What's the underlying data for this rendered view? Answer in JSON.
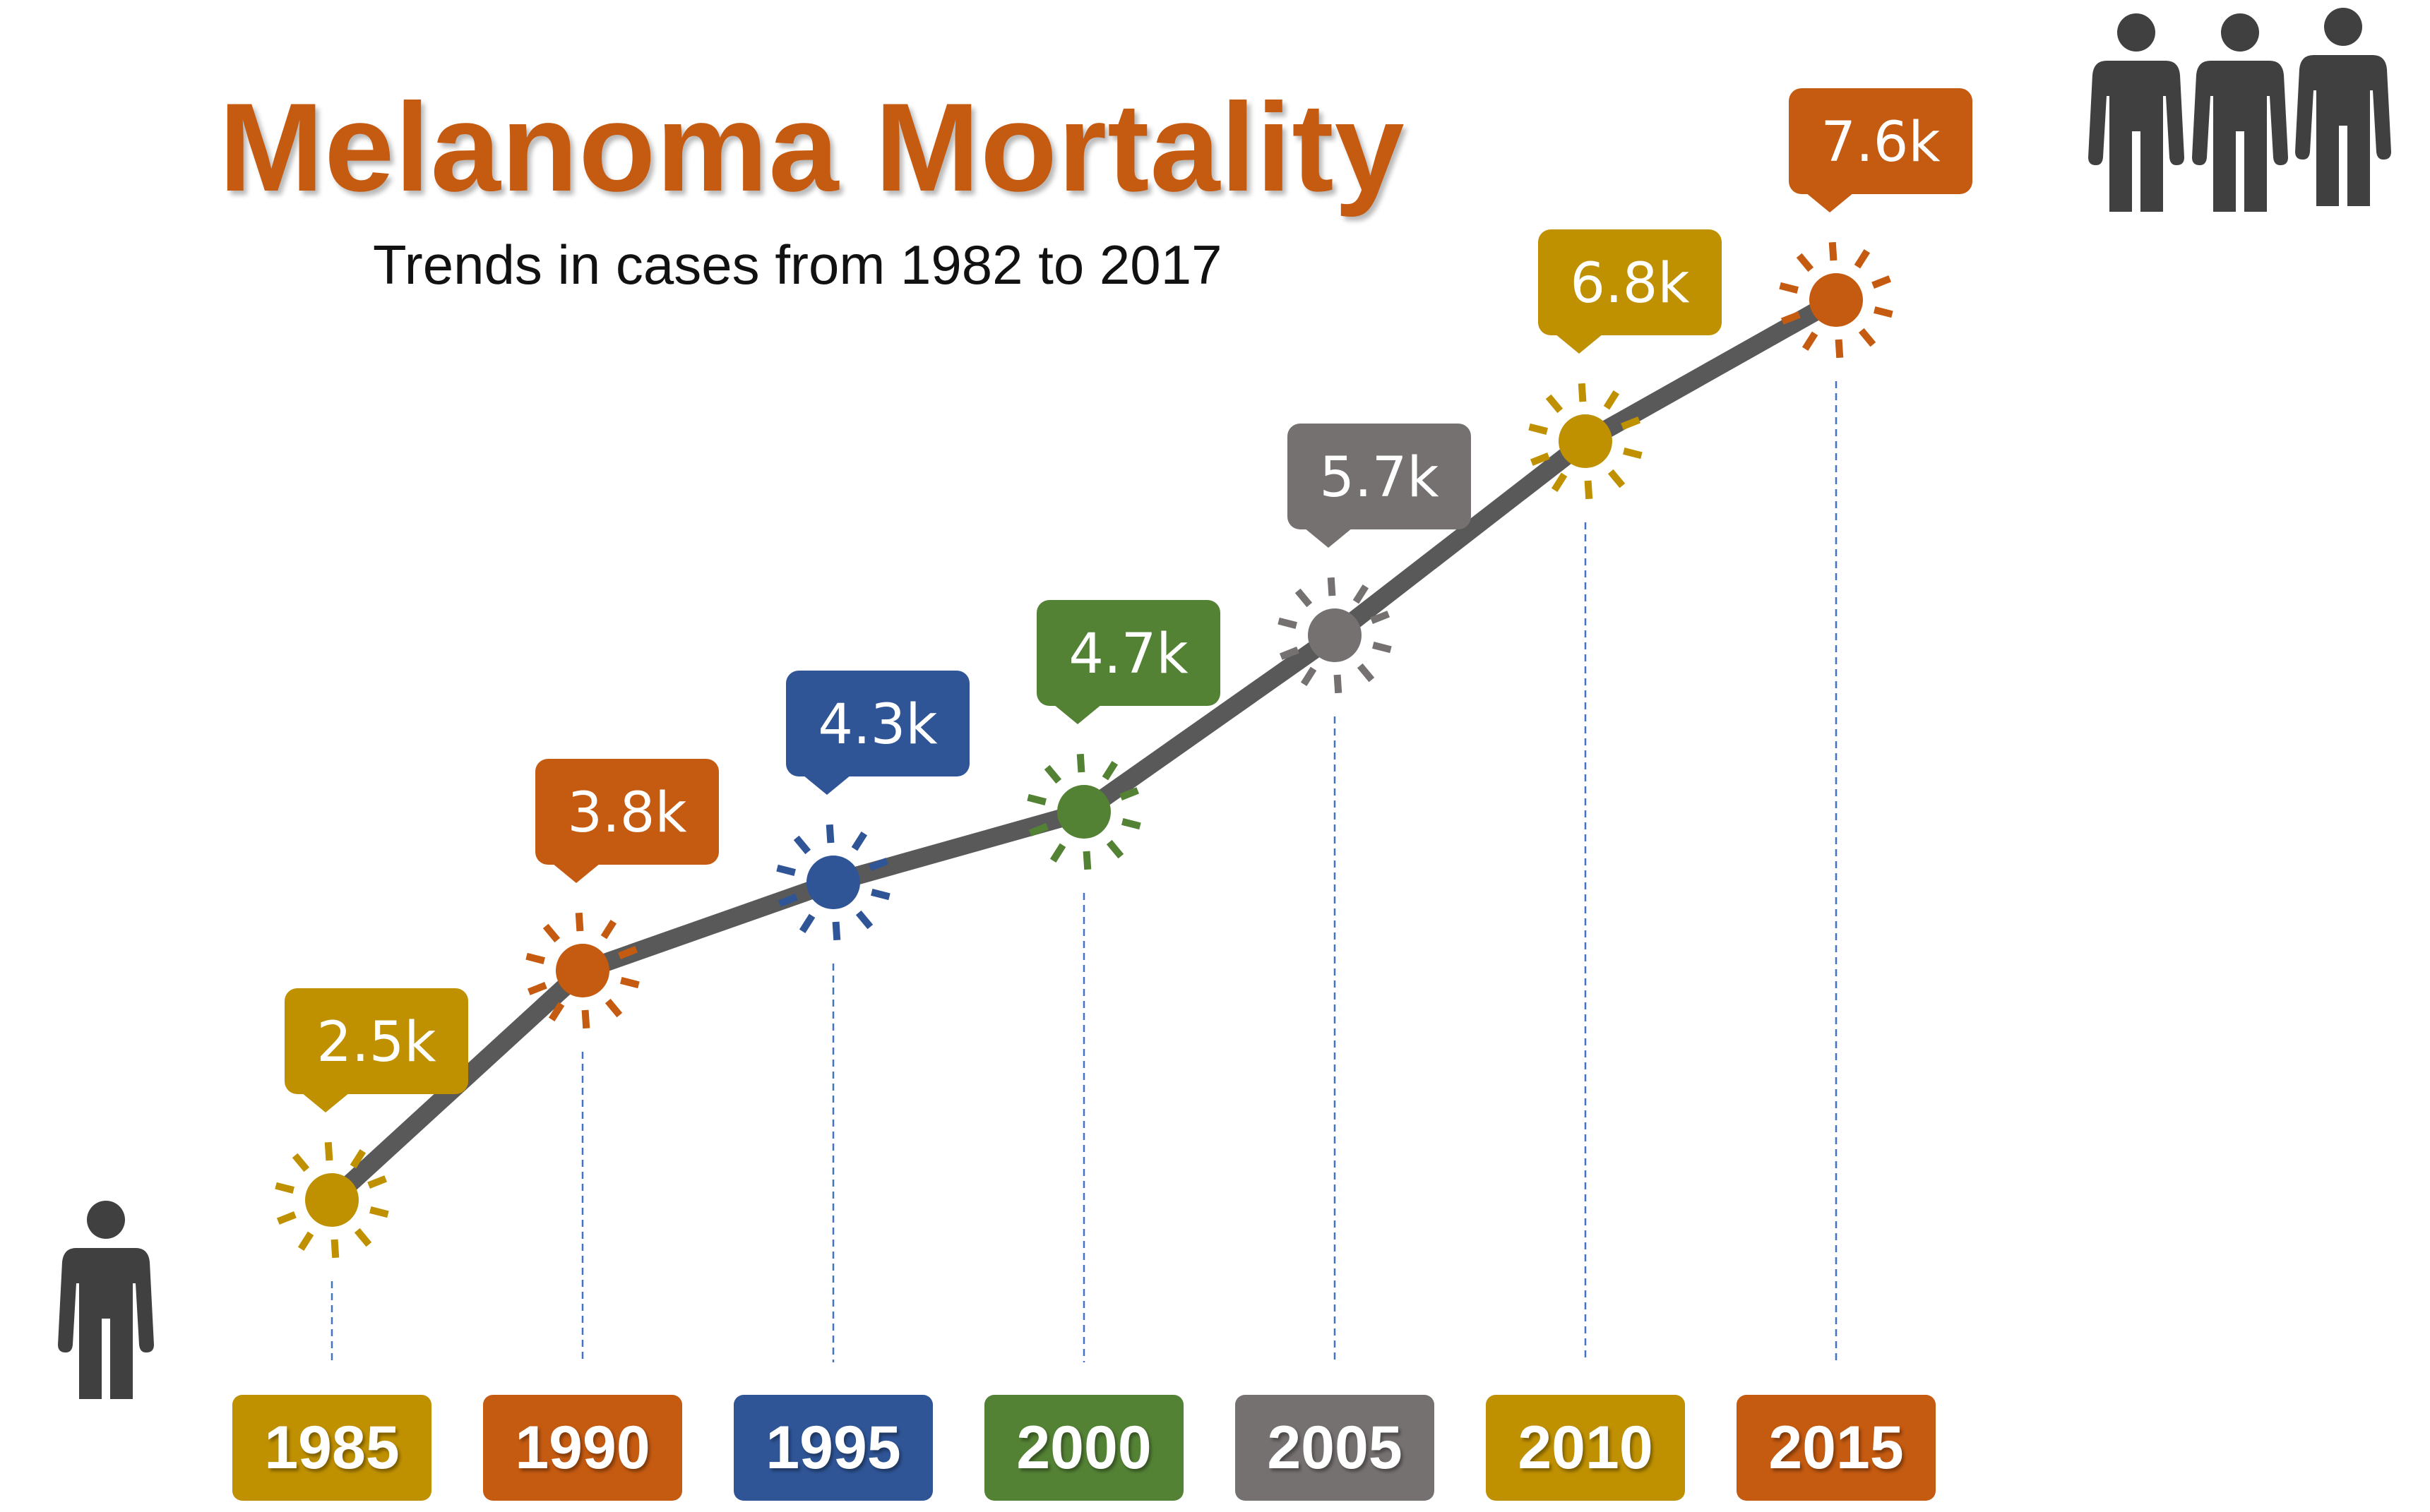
{
  "header": {
    "title": "Melanoma Mortality",
    "subtitle": "Trends in cases from 1982 to 2017"
  },
  "chart_data": {
    "type": "line",
    "title": "Melanoma Mortality",
    "subtitle": "Trends in cases from 1982 to 2017",
    "xlabel": "",
    "ylabel": "",
    "categories": [
      "1985",
      "1990",
      "1995",
      "2000",
      "2005",
      "2010",
      "2015"
    ],
    "values": [
      2.5,
      3.8,
      4.3,
      4.7,
      5.7,
      6.8,
      7.6
    ],
    "labels": [
      "2.5k",
      "3.8k",
      "4.3k",
      "4.7k",
      "5.7k",
      "6.8k",
      "7.6k"
    ],
    "colors": [
      "#BF9000",
      "#C55A11",
      "#2F5597",
      "#548235",
      "#767171",
      "#BF9000",
      "#C55A11"
    ],
    "line_color": "#595959",
    "ylim": [
      1.5,
      8.5
    ],
    "grid": false,
    "legend": "none"
  },
  "icons": {
    "start": "single-person-icon",
    "end": "group-of-people-icon"
  },
  "colors": {
    "title": "#C55A11",
    "person_icon": "#404040"
  }
}
